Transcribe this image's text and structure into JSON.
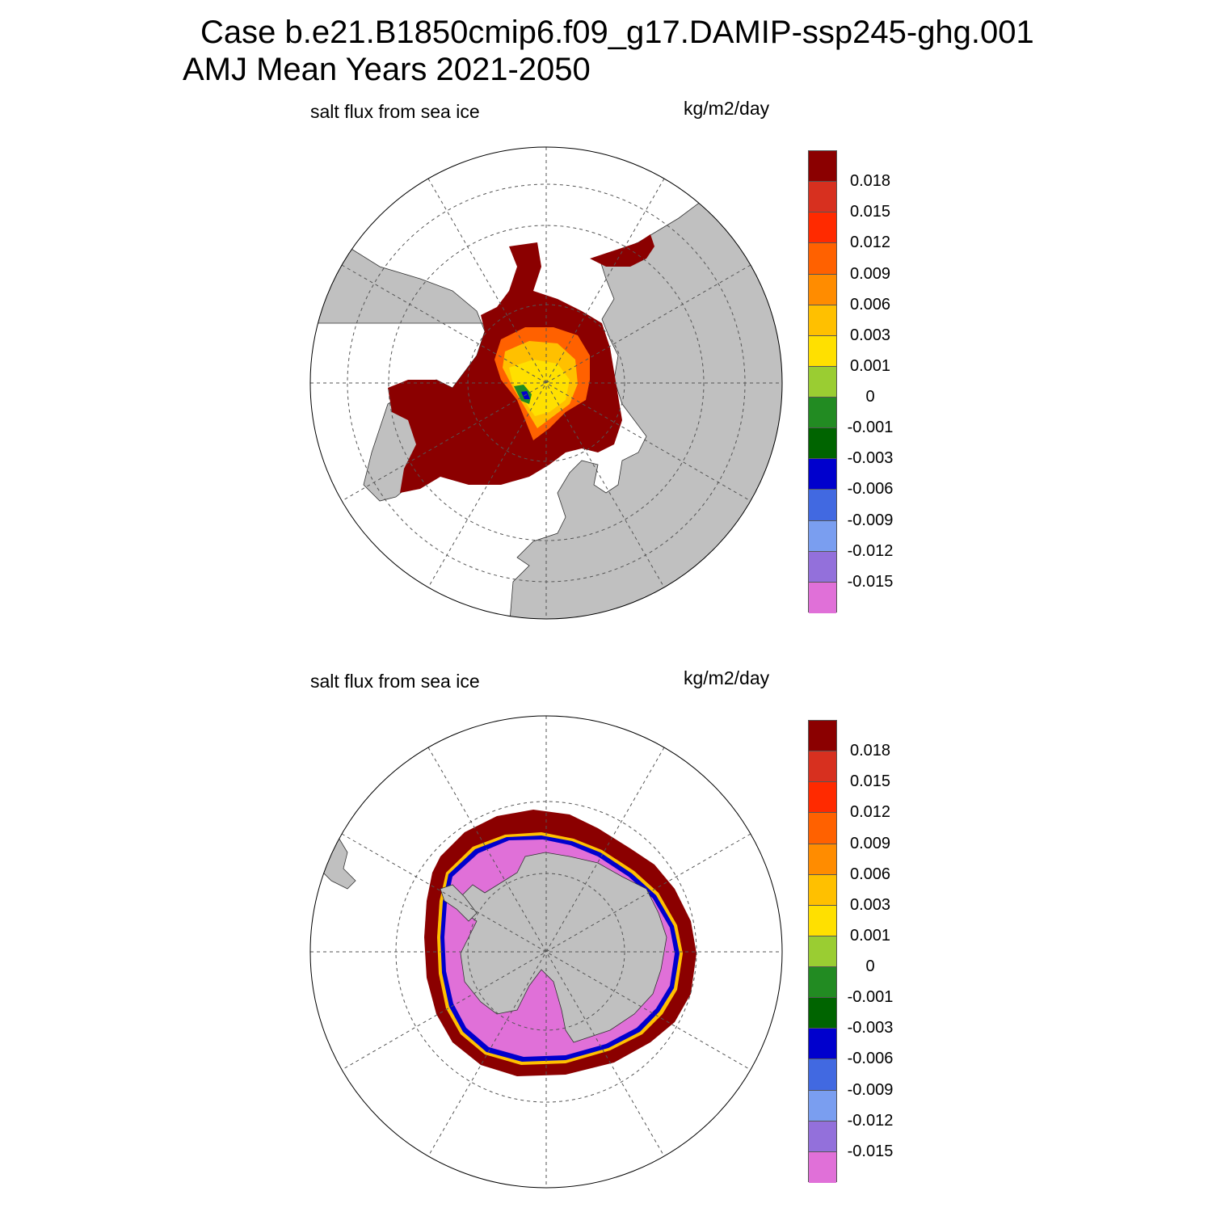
{
  "figure": {
    "title_line1": "Case b.e21.B1850cmip6.f09_g17.DAMIP-ssp245-ghg.001",
    "title_line2": "AMJ Mean   Years 2021-2050"
  },
  "colors": {
    "land": "#c0c0c0",
    "ocean": "#ffffff",
    "grid": "#555555",
    "scale": [
      "#8b0000",
      "#d7301f",
      "#ff2a00",
      "#ff6100",
      "#ff8c00",
      "#ffc000",
      "#ffe000",
      "#9acd32",
      "#228b22",
      "#006400",
      "#0000cd",
      "#4169e1",
      "#7a9ef0",
      "#9370db",
      "#e070d8"
    ]
  },
  "colorbar_ticks": [
    "0.018",
    "0.015",
    "0.012",
    "0.009",
    "0.006",
    "0.003",
    "0.001",
    "0",
    "-0.001",
    "-0.003",
    "-0.006",
    "-0.009",
    "-0.012",
    "-0.015"
  ],
  "panels": [
    {
      "id": "north",
      "title": "salt flux from sea ice",
      "units": "kg/m2/day",
      "hemisphere": "north"
    },
    {
      "id": "south",
      "title": "salt flux from sea ice",
      "units": "kg/m2/day",
      "hemisphere": "south"
    }
  ]
}
